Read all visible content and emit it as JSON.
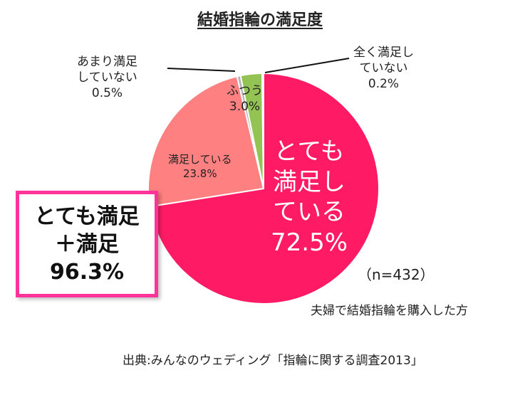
{
  "title": "結婚指輪の満足度",
  "chart_data": {
    "type": "pie",
    "title": "結婚指輪の満足度",
    "slices": [
      {
        "line1": "とても",
        "line2": "満足し",
        "line3": "ている",
        "value": 72.5,
        "value_label": "72.5%",
        "color": "#ff1a66"
      },
      {
        "line1": "満足している",
        "line2": "",
        "line3": "",
        "value": 23.8,
        "value_label": "23.8%",
        "color": "#ff8080"
      },
      {
        "line1": "あまり満足",
        "line2": "していない",
        "line3": "",
        "value": 0.5,
        "value_label": "0.5%",
        "color": "#b3b3b3"
      },
      {
        "line1": "ふつう",
        "line2": "",
        "line3": "",
        "value": 3.0,
        "value_label": "3.0%",
        "color": "#92c353"
      },
      {
        "line1": "全く満足し",
        "line2": "ていない",
        "line3": "",
        "value": 0.2,
        "value_label": "0.2%",
        "color": "#6699cc"
      }
    ]
  },
  "callout": {
    "line1": "とても満足",
    "line2": "＋満足",
    "line3": "96.3%"
  },
  "sample_size": "（n=432）",
  "sample_desc": "夫婦で結婚指輪を購入した方",
  "source": "出典:みんなのウェディング「指輪に関する調査2013」"
}
